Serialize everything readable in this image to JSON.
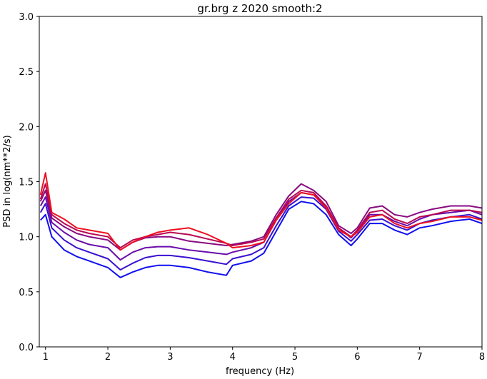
{
  "chart_data": {
    "type": "line",
    "title": "gr.brg z 2020 smooth:2",
    "xlabel": "frequency (Hz)",
    "ylabel": "PSD in log(nm**2/s)",
    "xlim": [
      0.9,
      8
    ],
    "ylim": [
      0,
      3.0
    ],
    "xticks": [
      1,
      2,
      3,
      4,
      5,
      6,
      7,
      8
    ],
    "xtick_labels": [
      "1",
      "2",
      "3",
      "4",
      "5",
      "6",
      "7",
      "8"
    ],
    "yticks": [
      0,
      0.5,
      1,
      1.5,
      2,
      2.5,
      3
    ],
    "ytick_labels": [
      "0.0",
      "0.5",
      "1.0",
      "1.5",
      "2.0",
      "2.5",
      "3.0"
    ],
    "grid": false,
    "x": [
      0.92,
      1.0,
      1.1,
      1.3,
      1.5,
      1.7,
      2.0,
      2.2,
      2.4,
      2.6,
      2.8,
      3.0,
      3.3,
      3.6,
      3.9,
      4.0,
      4.3,
      4.5,
      4.7,
      4.9,
      5.1,
      5.3,
      5.5,
      5.7,
      5.9,
      6.0,
      6.2,
      6.4,
      6.6,
      6.8,
      7.0,
      7.2,
      7.5,
      7.8,
      8.0
    ],
    "series": [
      {
        "color": "#1010ee",
        "values": [
          1.15,
          1.2,
          1.0,
          0.88,
          0.82,
          0.78,
          0.72,
          0.63,
          0.68,
          0.72,
          0.74,
          0.74,
          0.72,
          0.68,
          0.65,
          0.74,
          0.78,
          0.85,
          1.05,
          1.25,
          1.32,
          1.3,
          1.2,
          1.02,
          0.92,
          0.98,
          1.12,
          1.12,
          1.06,
          1.02,
          1.08,
          1.1,
          1.14,
          1.16,
          1.12
        ]
      },
      {
        "color": "#3a10d0",
        "values": [
          1.22,
          1.3,
          1.08,
          0.97,
          0.9,
          0.86,
          0.8,
          0.7,
          0.76,
          0.81,
          0.83,
          0.83,
          0.81,
          0.78,
          0.75,
          0.8,
          0.84,
          0.9,
          1.1,
          1.28,
          1.36,
          1.35,
          1.25,
          1.05,
          0.96,
          1.02,
          1.15,
          1.16,
          1.1,
          1.06,
          1.12,
          1.15,
          1.18,
          1.2,
          1.16
        ]
      },
      {
        "color": "#6a0caa",
        "values": [
          1.28,
          1.36,
          1.13,
          1.04,
          0.97,
          0.93,
          0.9,
          0.79,
          0.86,
          0.9,
          0.91,
          0.91,
          0.88,
          0.86,
          0.84,
          0.86,
          0.9,
          0.95,
          1.15,
          1.32,
          1.4,
          1.38,
          1.28,
          1.08,
          0.99,
          1.05,
          1.2,
          1.2,
          1.14,
          1.1,
          1.16,
          1.2,
          1.22,
          1.24,
          1.2
        ]
      },
      {
        "color": "#8a0a80",
        "values": [
          1.32,
          1.42,
          1.17,
          1.09,
          1.03,
          1.0,
          0.97,
          0.88,
          0.95,
          0.99,
          1.0,
          1.0,
          0.96,
          0.94,
          0.92,
          0.93,
          0.96,
          1.0,
          1.2,
          1.37,
          1.48,
          1.42,
          1.32,
          1.1,
          1.03,
          1.08,
          1.26,
          1.28,
          1.2,
          1.18,
          1.22,
          1.25,
          1.28,
          1.28,
          1.26
        ]
      },
      {
        "color": "#b80850",
        "values": [
          1.34,
          1.48,
          1.2,
          1.12,
          1.06,
          1.03,
          1.0,
          0.9,
          0.97,
          1.0,
          1.02,
          1.04,
          1.02,
          0.98,
          0.94,
          0.92,
          0.95,
          0.98,
          1.17,
          1.34,
          1.42,
          1.4,
          1.28,
          1.08,
          1.0,
          1.06,
          1.22,
          1.24,
          1.16,
          1.12,
          1.18,
          1.2,
          1.24,
          1.24,
          1.22
        ]
      },
      {
        "color": "#ee1020",
        "values": [
          1.38,
          1.58,
          1.22,
          1.16,
          1.08,
          1.06,
          1.03,
          0.88,
          0.95,
          1.0,
          1.04,
          1.06,
          1.08,
          1.02,
          0.94,
          0.9,
          0.92,
          0.95,
          1.15,
          1.3,
          1.4,
          1.38,
          1.26,
          1.06,
          1.0,
          1.04,
          1.18,
          1.2,
          1.12,
          1.08,
          1.12,
          1.14,
          1.18,
          1.18,
          1.15
        ]
      }
    ]
  }
}
